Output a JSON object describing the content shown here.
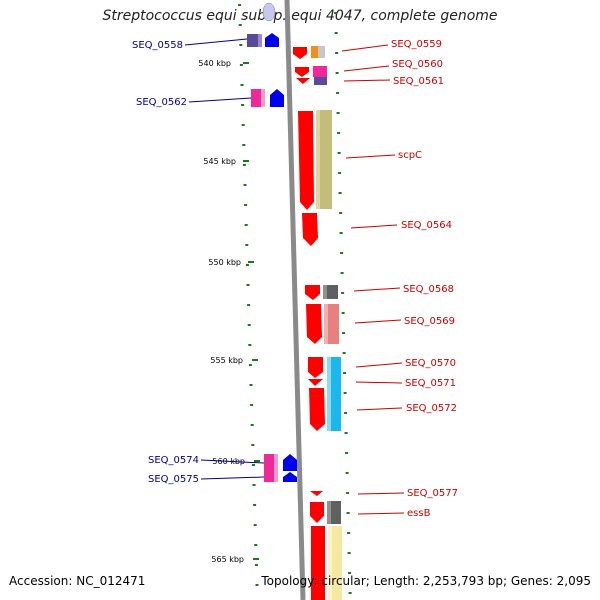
{
  "title": "Streptococcus equi subsp. equi 4047, complete genome",
  "accession": "Accession: NC_012471",
  "summary": "Topology: circular; Length: 2,253,793 bp; Genes: 2,095",
  "colors": {
    "left_label": "#00008b",
    "right_label": "#cc0000",
    "tick": "#1a7a1a",
    "backbone": "#808080"
  },
  "ticks": [
    "540 kbp",
    "545 kbp",
    "550 kbp",
    "555 kbp",
    "560 kbp",
    "565 kbp"
  ],
  "left_genes": [
    "SEQ_0558",
    "SEQ_0562",
    "SEQ_0574",
    "SEQ_0575"
  ],
  "right_genes": [
    "SEQ_0559",
    "SEQ_0560",
    "SEQ_0561",
    "scpC",
    "SEQ_0564",
    "SEQ_0568",
    "SEQ_0569",
    "SEQ_0570",
    "SEQ_0571",
    "SEQ_0572",
    "SEQ_0577",
    "essB"
  ]
}
